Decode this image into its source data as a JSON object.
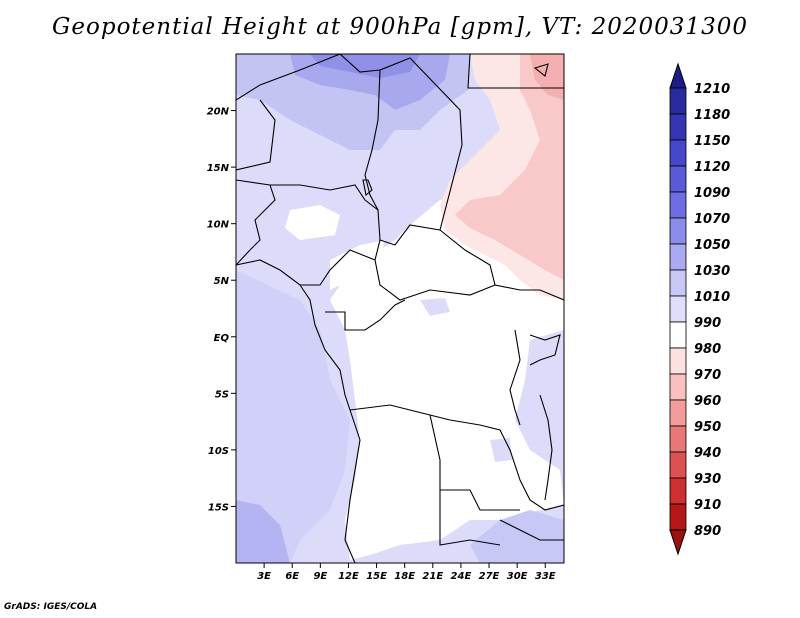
{
  "title": "Geopotential Height at 900hPa [gpm], VT: 2020031300",
  "credit": "GrADS: IGES/COLA",
  "map": {
    "lon_range": [
      0,
      35
    ],
    "lat_range": [
      -20,
      25
    ],
    "xticks": [
      "3E",
      "6E",
      "9E",
      "12E",
      "15E",
      "18E",
      "21E",
      "24E",
      "27E",
      "30E",
      "33E"
    ],
    "xtick_values": [
      3,
      6,
      9,
      12,
      15,
      18,
      21,
      24,
      27,
      30,
      33
    ],
    "yticks": [
      "20N",
      "15N",
      "10N",
      "5N",
      "EQ",
      "5S",
      "10S",
      "15S"
    ],
    "ytick_values": [
      20,
      15,
      10,
      5,
      0,
      -5,
      -10,
      -15
    ]
  },
  "colorbar": {
    "labels": [
      "1210",
      "1180",
      "1150",
      "1120",
      "1090",
      "1070",
      "1050",
      "1030",
      "1010",
      "990",
      "980",
      "970",
      "960",
      "950",
      "940",
      "930",
      "910",
      "890"
    ],
    "colors": [
      "#1c1c88",
      "#2a2aa0",
      "#3636b4",
      "#4646c8",
      "#5a5ad6",
      "#6e6ee2",
      "#8c8cea",
      "#aaaaf0",
      "#c8c8f6",
      "#dedefa",
      "#ffffff",
      "#fde0e0",
      "#f9c0c0",
      "#f29c9c",
      "#e87878",
      "#dc5252",
      "#cc3030",
      "#b41818",
      "#9c1010"
    ]
  }
}
